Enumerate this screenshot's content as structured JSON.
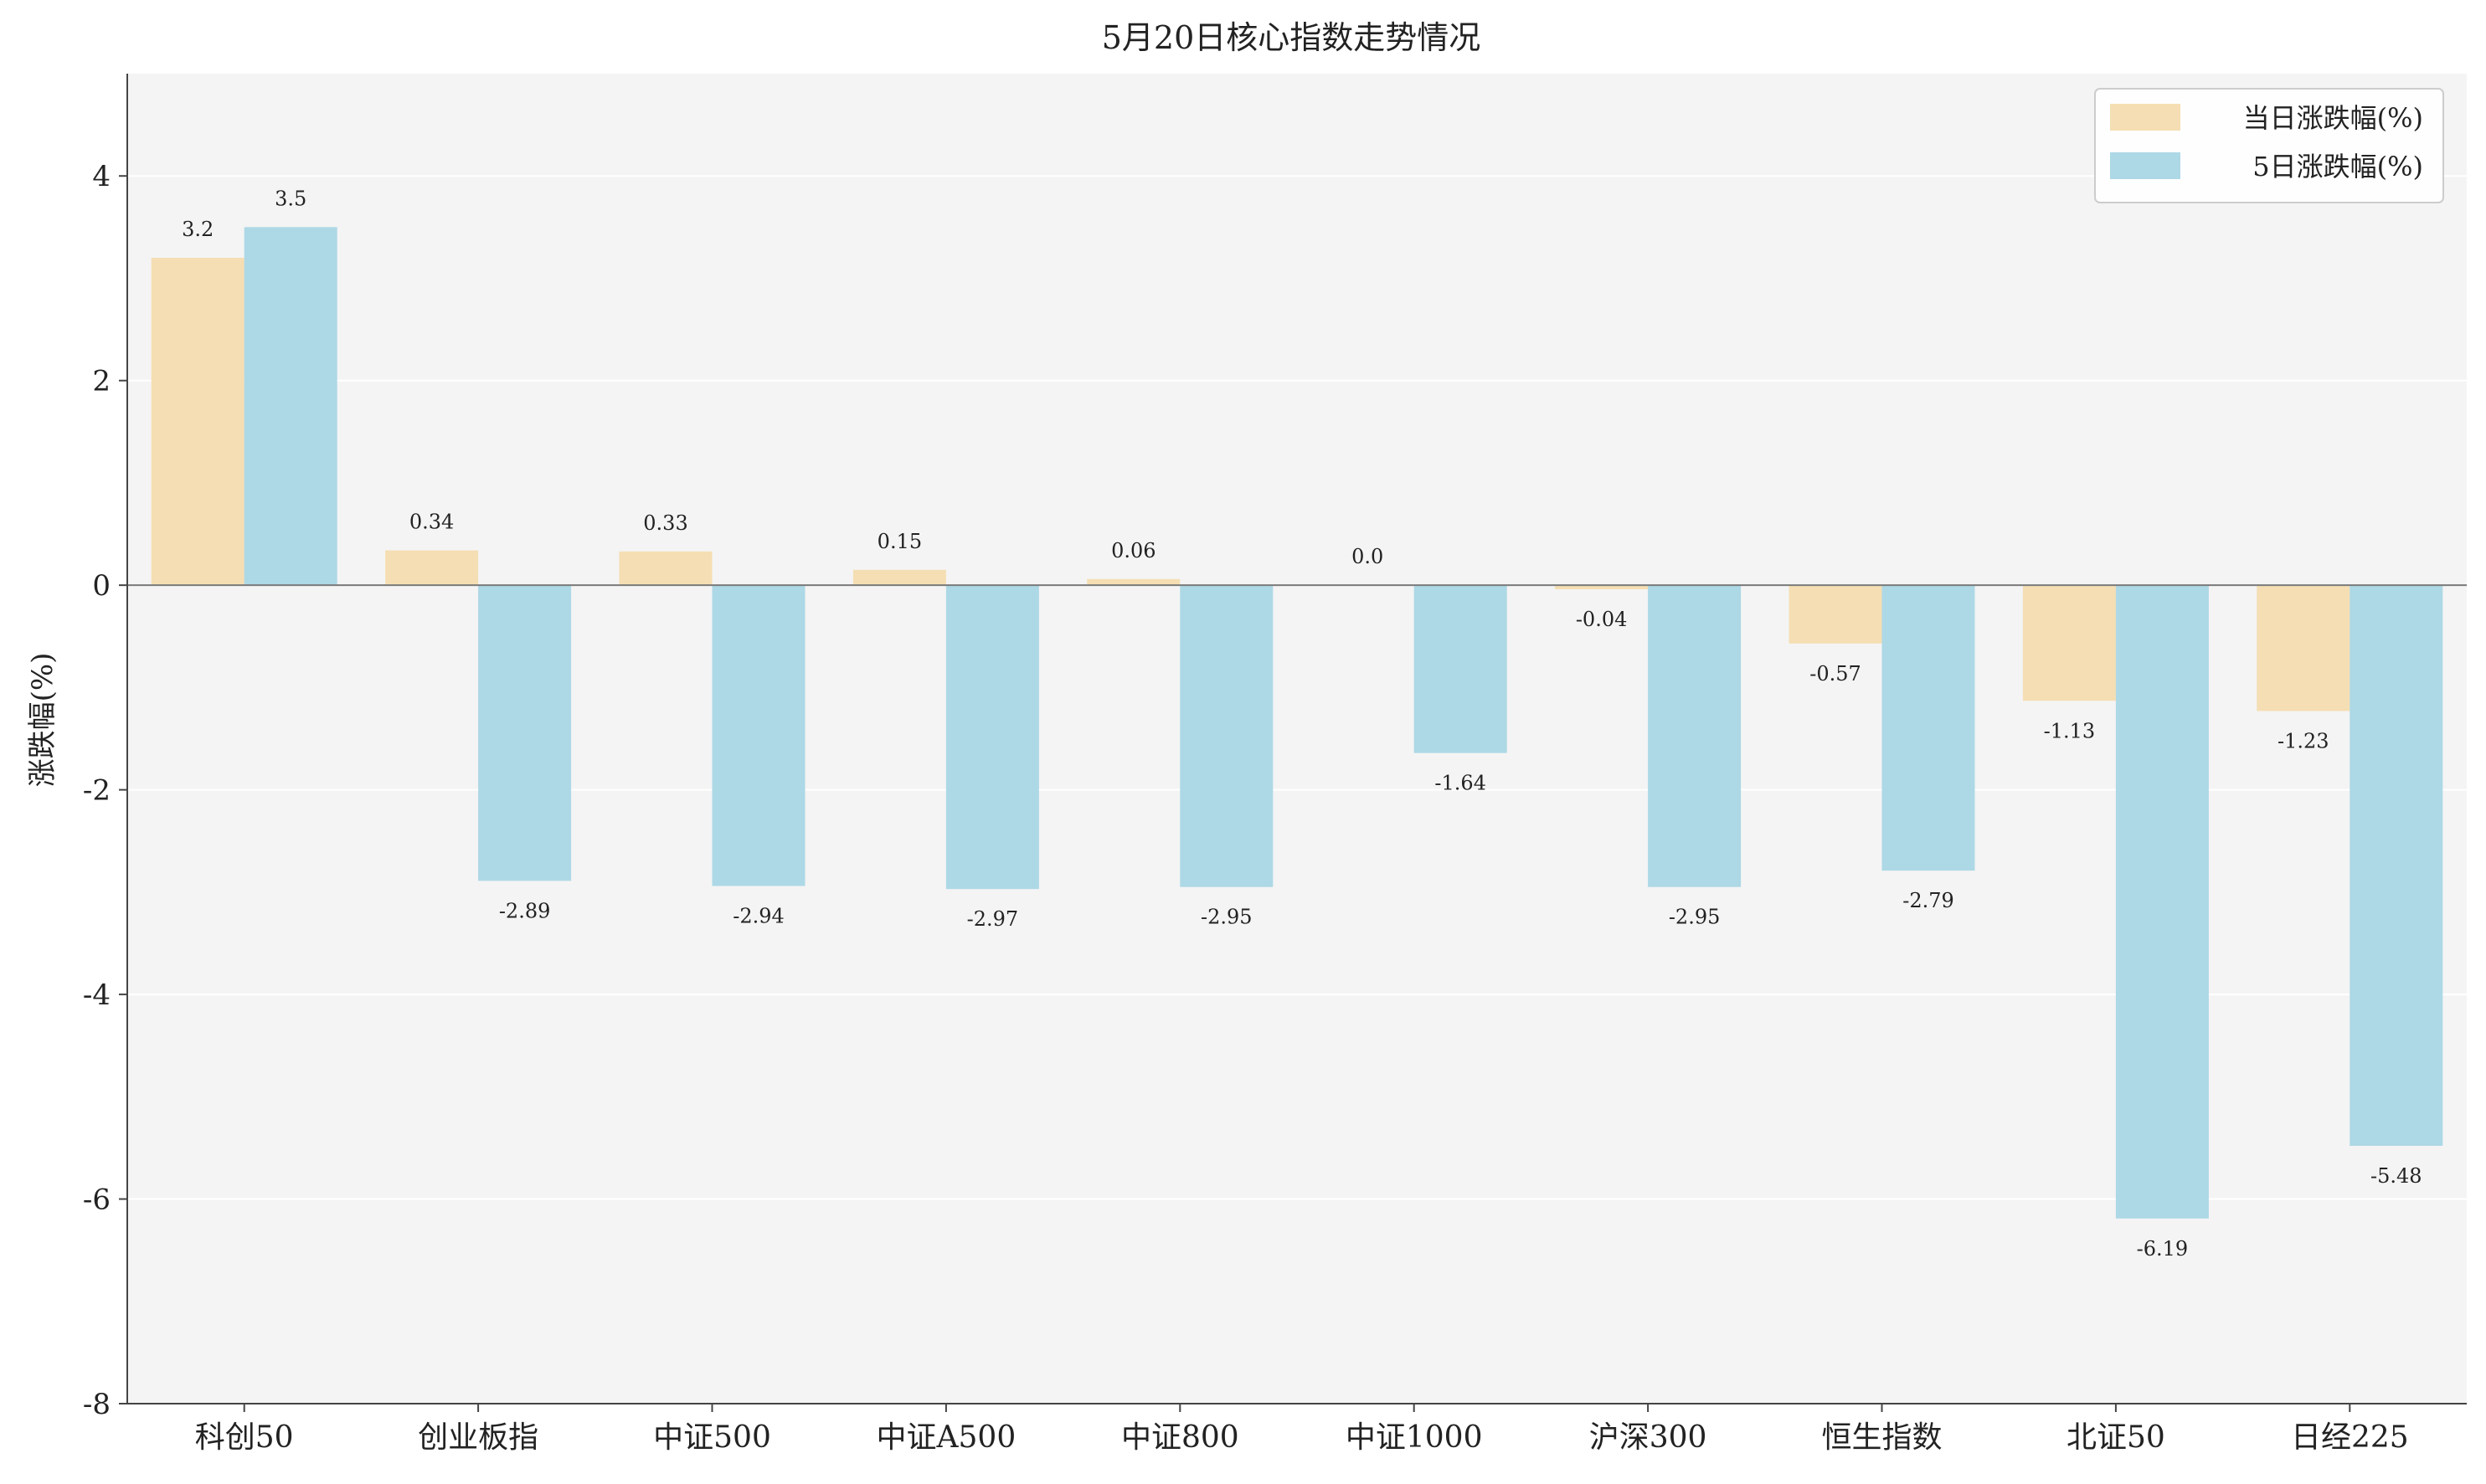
{
  "chart_data": {
    "type": "bar",
    "title": "5月20日核心指数走势情况",
    "xlabel": "",
    "ylabel": "涨跌幅(%)",
    "ylim": [
      -8,
      5
    ],
    "yticks": [
      4,
      2,
      0,
      -2,
      -4,
      -6,
      -8
    ],
    "grid": true,
    "legend_position": "top-right",
    "categories": [
      "科创50",
      "创业板指",
      "中证500",
      "中证A500",
      "中证800",
      "中证1000",
      "沪深300",
      "恒生指数",
      "北证50",
      "日经225"
    ],
    "series": [
      {
        "name": "当日涨跌幅(%)",
        "color": "#f5deb3",
        "values": [
          3.2,
          0.34,
          0.33,
          0.15,
          0.06,
          0.0,
          -0.04,
          -0.57,
          -1.13,
          -1.23
        ],
        "labels": [
          "3.2",
          "0.34",
          "0.33",
          "0.15",
          "0.06",
          "0.0",
          "-0.04",
          "-0.57",
          "-1.13",
          "-1.23"
        ]
      },
      {
        "name": "5日涨跌幅(%)",
        "color": "#add8e6",
        "values": [
          3.5,
          -2.89,
          -2.94,
          -2.97,
          -2.95,
          -1.64,
          -2.95,
          -2.79,
          -6.19,
          -5.48
        ],
        "labels": [
          "3.5",
          "-2.89",
          "-2.94",
          "-2.97",
          "-2.95",
          "-1.64",
          "-2.95",
          "-2.79",
          "-6.19",
          "-5.48"
        ]
      }
    ]
  }
}
